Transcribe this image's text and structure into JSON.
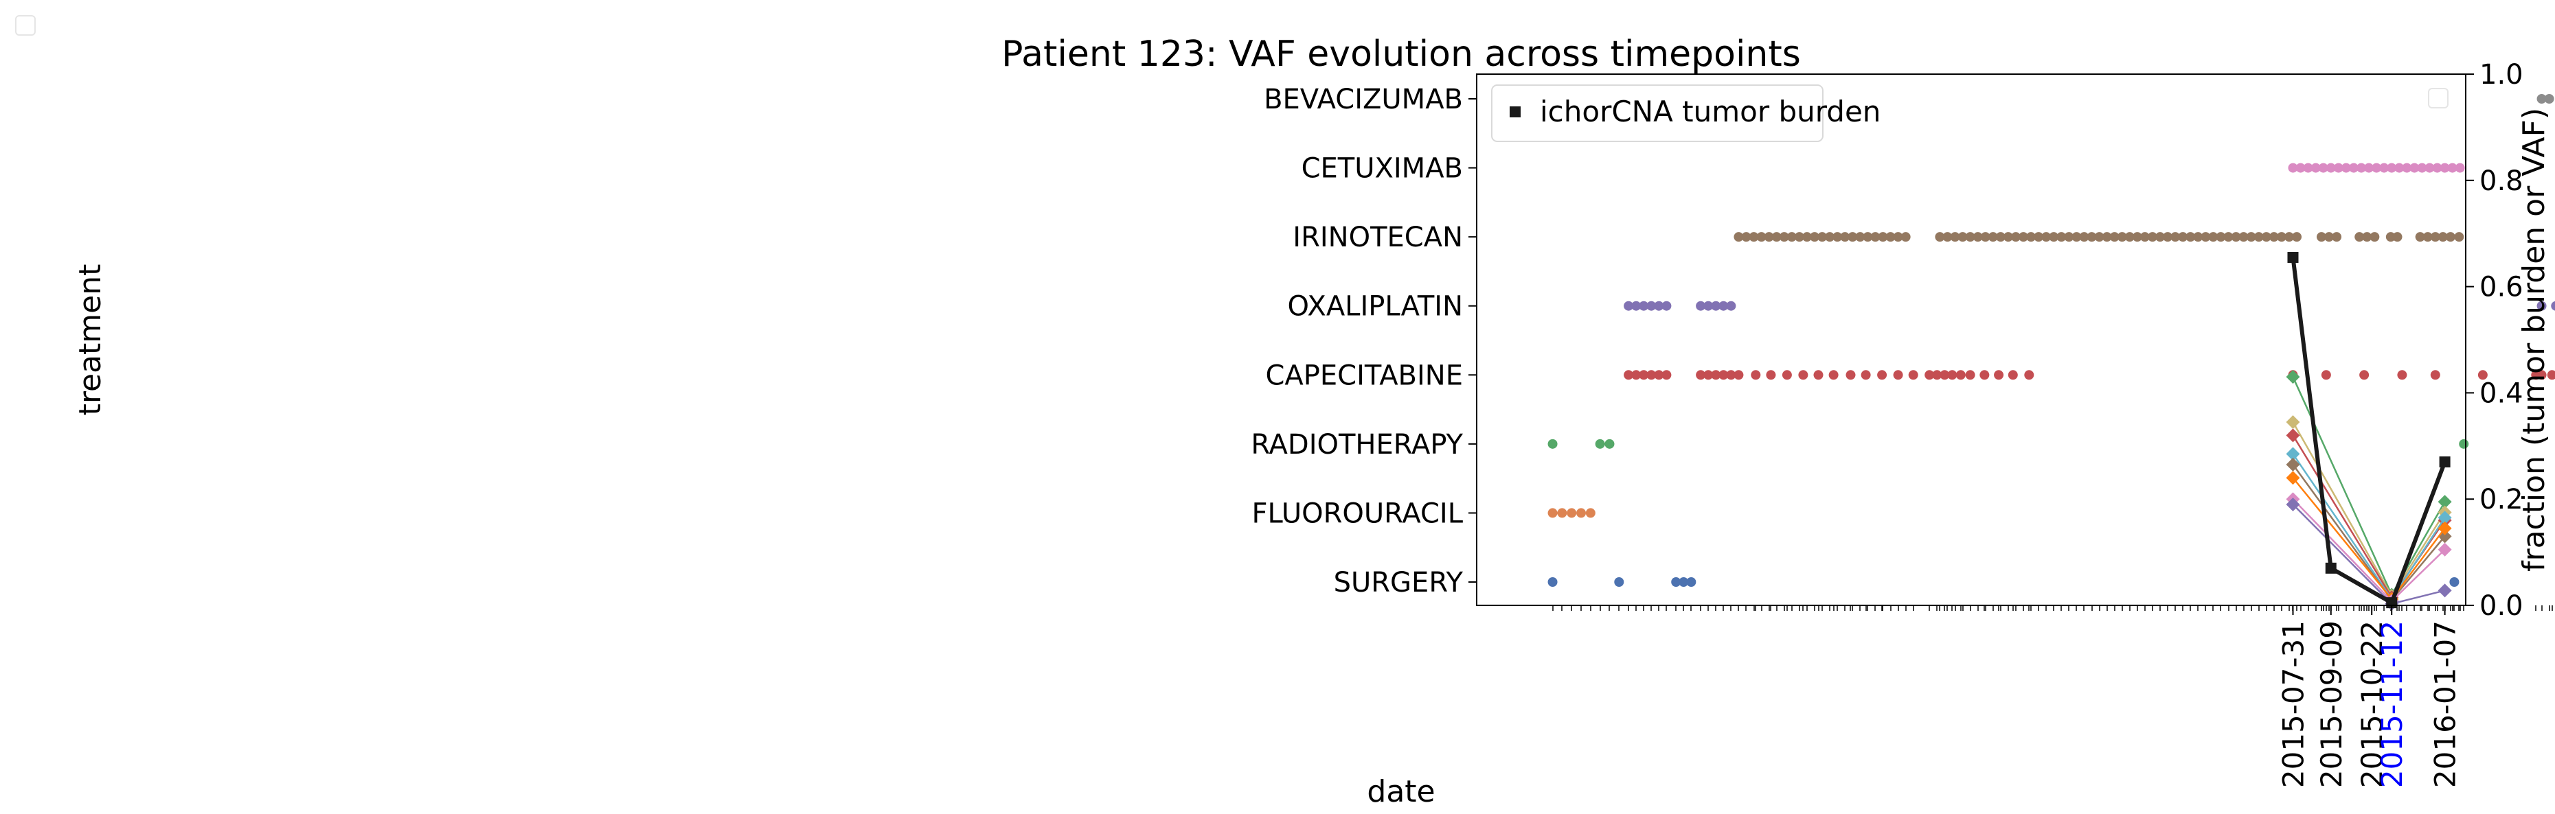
{
  "chart_data": {
    "type": "scatter",
    "title": "Patient 123: VAF evolution across timepoints",
    "xlabel": "date",
    "ylabel_left": "treatment",
    "ylabel_right": "fraction (tumor burden or VAF)",
    "y_right_range": [
      0.0,
      1.0
    ],
    "y_right_ticks": [
      "0.0",
      "0.2",
      "0.4",
      "0.6",
      "0.8",
      "1.0"
    ],
    "x_range_days": [
      -860,
      182
    ],
    "x_ticks": [
      {
        "label": "2015-07-31",
        "day": 0,
        "color": "#000000"
      },
      {
        "label": "2015-09-09",
        "day": 40,
        "color": "#000000"
      },
      {
        "label": "2015-10-22",
        "day": 83,
        "color": "#000000"
      },
      {
        "label": "2015-11-12",
        "day": 104,
        "color": "#0000ff"
      },
      {
        "label": "2016-01-07",
        "day": 160,
        "color": "#000000"
      }
    ],
    "legend": {
      "placement": "upper-left",
      "label": "ichorCNA tumor burden"
    },
    "treatments": [
      {
        "name": "SURGERY",
        "color": "#4c72b0",
        "days": [
          -780,
          -710,
          -650,
          -642,
          -634,
          170
        ]
      },
      {
        "name": "FLUOROURACIL",
        "color": "#dd8452",
        "days": [
          -780,
          -770,
          -760,
          -750,
          -740
        ]
      },
      {
        "name": "RADIOTHERAPY",
        "color": "#55a868",
        "days": [
          -780,
          -730,
          -720,
          180
        ]
      },
      {
        "name": "CAPECITABINE",
        "color": "#c44e52",
        "days": [
          -700,
          -692,
          -684,
          -676,
          -668,
          -660,
          -624,
          -616,
          -608,
          -600,
          -592,
          -584,
          -566,
          -550,
          -533,
          -516,
          -500,
          -484,
          -466,
          -450,
          -433,
          -416,
          -400,
          -383,
          -375,
          -367,
          -359,
          -350,
          -340,
          -325,
          -310,
          -295,
          -278,
          0,
          35,
          75,
          115,
          150,
          200,
          256,
          262,
          273,
          281
        ]
      },
      {
        "name": "OXALIPLATIN",
        "color": "#8172b3",
        "days": [
          -700,
          -692,
          -684,
          -676,
          -668,
          -660,
          -624,
          -616,
          -608,
          -600,
          -592,
          262,
          277,
          284,
          291
        ]
      },
      {
        "name": "IRINOTECAN",
        "color": "#937860",
        "days": [
          -584,
          -576,
          -568,
          -560,
          -552,
          -544,
          -536,
          -528,
          -520,
          -512,
          -504,
          -496,
          -488,
          -480,
          -472,
          -464,
          -456,
          -448,
          -440,
          -432,
          -424,
          -416,
          -408,
          -372,
          -364,
          -356,
          -348,
          -340,
          -332,
          -324,
          -316,
          -308,
          -300,
          -292,
          -284,
          -276,
          -268,
          -260,
          -252,
          -244,
          -236,
          -228,
          -220,
          -212,
          -204,
          -196,
          -188,
          -180,
          -172,
          -164,
          -156,
          -148,
          -140,
          -132,
          -124,
          -116,
          -108,
          -100,
          -92,
          -84,
          -76,
          -68,
          -60,
          -52,
          -44,
          -36,
          -28,
          -20,
          -12,
          -4,
          4,
          30,
          38,
          46,
          70,
          78,
          86,
          103,
          110,
          134,
          142,
          150,
          158,
          166,
          175
        ]
      },
      {
        "name": "CETUXIMAB",
        "color": "#da8bc3",
        "days": [
          0,
          8,
          16,
          24,
          32,
          40,
          48,
          56,
          64,
          72,
          80,
          88,
          96,
          104,
          112,
          120,
          128,
          136,
          144,
          152,
          160,
          168,
          176
        ]
      },
      {
        "name": "BEVACIZUMAB",
        "color": "#8c8c8c",
        "days": [
          262,
          270,
          284,
          291
        ]
      }
    ],
    "tumor_burden": {
      "name": "ichorCNA tumor burden",
      "color": "#1a1a1a",
      "x": [
        0,
        40,
        104,
        160
      ],
      "y": [
        0.655,
        0.07,
        0.005,
        0.27
      ]
    },
    "vaf_series": [
      {
        "color": "#55a868",
        "x": [
          0,
          104,
          160
        ],
        "y": [
          0.43,
          0.02,
          0.195
        ]
      },
      {
        "color": "#ccb974",
        "x": [
          0,
          104,
          160
        ],
        "y": [
          0.345,
          0.018,
          0.175
        ]
      },
      {
        "color": "#c44e52",
        "x": [
          0,
          104,
          160
        ],
        "y": [
          0.32,
          0.015,
          0.16
        ]
      },
      {
        "color": "#64b5cd",
        "x": [
          0,
          104,
          160
        ],
        "y": [
          0.285,
          0.012,
          0.165
        ]
      },
      {
        "color": "#937860",
        "x": [
          0,
          104,
          160
        ],
        "y": [
          0.265,
          0.01,
          0.13
        ]
      },
      {
        "color": "#ff7f0e",
        "x": [
          0,
          104,
          160
        ],
        "y": [
          0.24,
          0.012,
          0.145
        ]
      },
      {
        "color": "#da8bc3",
        "x": [
          0,
          104,
          160
        ],
        "y": [
          0.2,
          0.008,
          0.105
        ]
      },
      {
        "color": "#8172b3",
        "x": [
          0,
          104,
          160
        ],
        "y": [
          0.19,
          0.003,
          0.028
        ]
      }
    ]
  }
}
